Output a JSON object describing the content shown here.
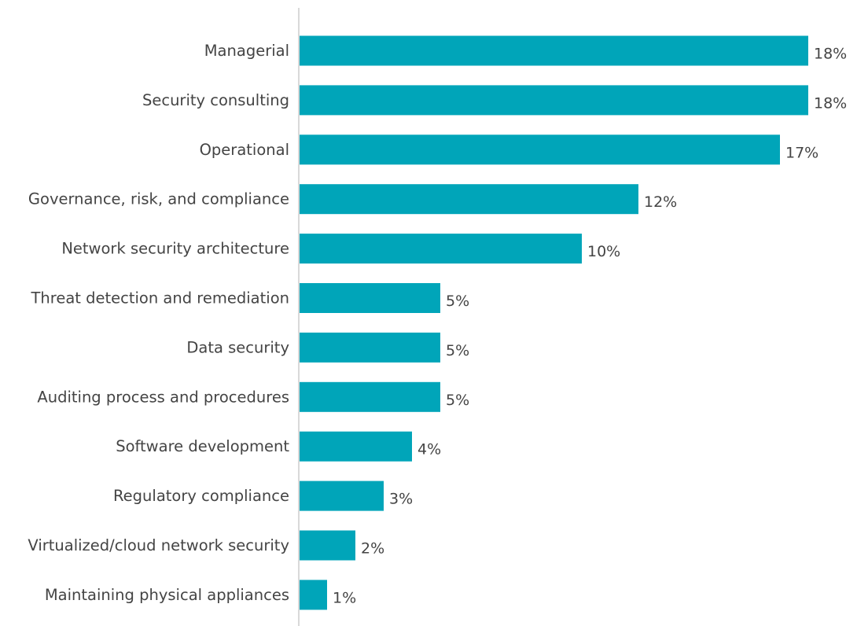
{
  "chart_data": {
    "type": "bar",
    "orientation": "horizontal",
    "categories": [
      "Managerial",
      "Security consulting",
      "Operational",
      "Governance, risk, and compliance",
      "Network security architecture",
      "Threat detection and remediation",
      "Data security",
      "Auditing process and procedures",
      "Software development",
      "Regulatory compliance",
      "Virtualized/cloud network security",
      "Maintaining physical appliances"
    ],
    "values": [
      18,
      18,
      17,
      12,
      10,
      5,
      5,
      5,
      4,
      3,
      2,
      1
    ],
    "value_labels": [
      "18%",
      "18%",
      "17%",
      "12%",
      "10%",
      "5%",
      "5%",
      "5%",
      "4%",
      "3%",
      "2%",
      "1%"
    ],
    "title": "",
    "xlabel": "",
    "ylabel": "",
    "xlim": [
      0,
      18
    ],
    "grid": false,
    "legend": "none",
    "bar_color": "#00a5b9"
  }
}
